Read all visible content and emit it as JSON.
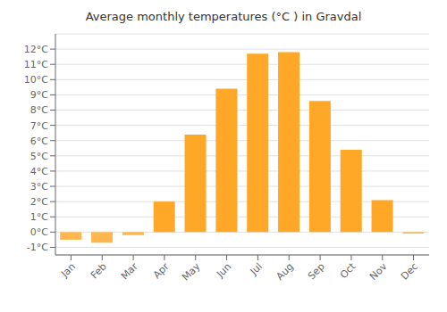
{
  "chart_data": {
    "type": "bar",
    "title": "Average monthly temperatures (°C ) in Gravdal",
    "categories": [
      "Jan",
      "Feb",
      "Mar",
      "Apr",
      "May",
      "Jun",
      "Jul",
      "Aug",
      "Sep",
      "Oct",
      "Nov",
      "Dec"
    ],
    "values": [
      -0.5,
      -0.7,
      -0.2,
      2.0,
      6.4,
      9.4,
      11.7,
      11.8,
      8.6,
      5.4,
      2.1,
      -0.1
    ],
    "colors": [
      "#FFB74D",
      "#FFB74D",
      "#FFB74D",
      "#FFA726",
      "#FFA726",
      "#FFA726",
      "#FFA726",
      "#FFA726",
      "#FFA726",
      "#FFA726",
      "#FFA726",
      "#FFB74D"
    ],
    "ylim": [
      -1.5,
      13.0
    ],
    "yticks": [
      {
        "value": -1,
        "label": "-1°C"
      },
      {
        "value": 0,
        "label": "0°C"
      },
      {
        "value": 1,
        "label": "1°C"
      },
      {
        "value": 2,
        "label": "2°C"
      },
      {
        "value": 3,
        "label": "3°C"
      },
      {
        "value": 4,
        "label": "4°C"
      },
      {
        "value": 5,
        "label": "5°C"
      },
      {
        "value": 6,
        "label": "6°C"
      },
      {
        "value": 7,
        "label": "7°C"
      },
      {
        "value": 8,
        "label": "8°C"
      },
      {
        "value": 9,
        "label": "9°C"
      },
      {
        "value": 10,
        "label": "10°C"
      },
      {
        "value": 11,
        "label": "11°C"
      },
      {
        "value": 12,
        "label": "12°C"
      }
    ],
    "grid": true
  }
}
